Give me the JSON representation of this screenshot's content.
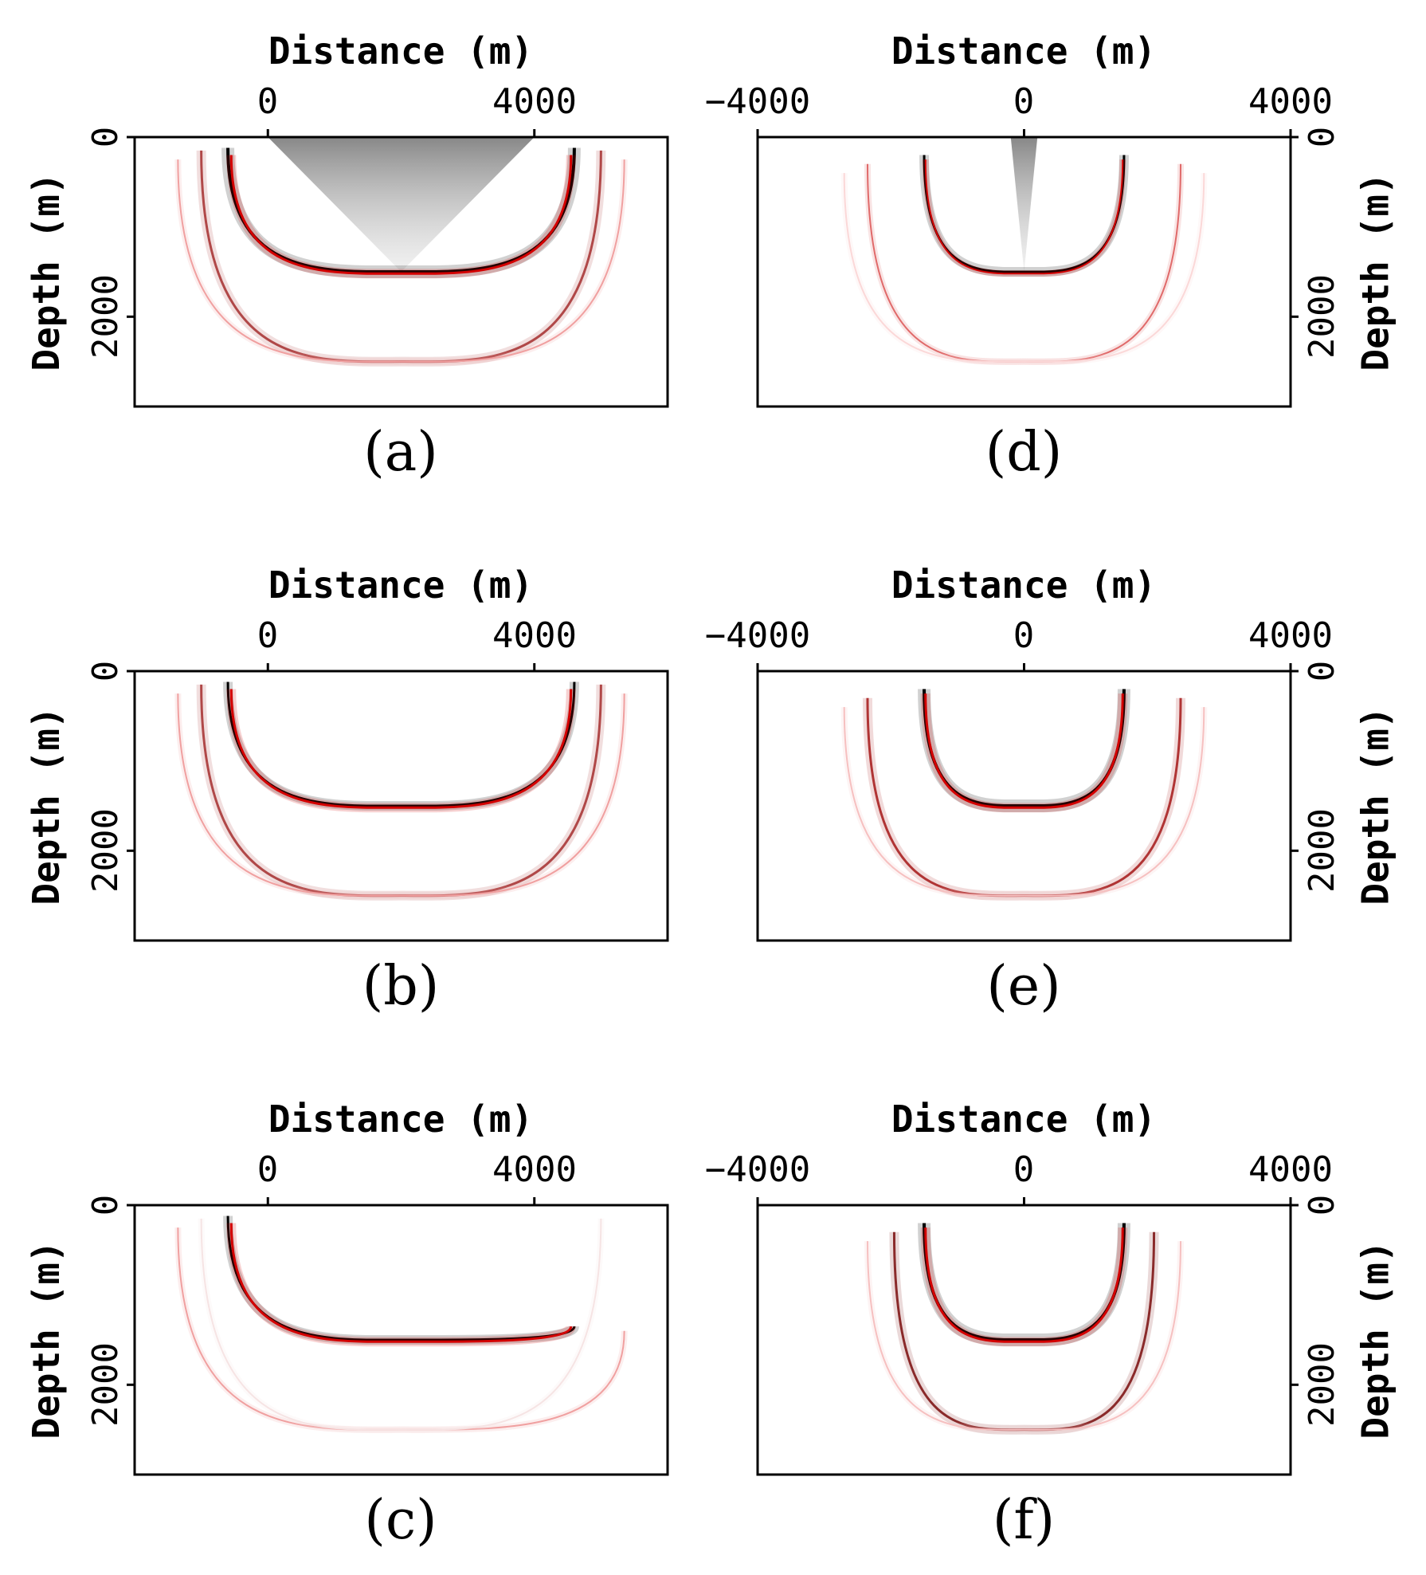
{
  "chart_data": [
    {
      "type": "heatmap",
      "panel": "(a)",
      "xlabel": "Distance (m)",
      "ylabel": "Depth (m)",
      "x_ticks": [
        0,
        4000
      ],
      "x_tick_labels": [
        "0",
        "4000"
      ],
      "y_ticks": [
        0,
        2000
      ],
      "y_tick_labels": [
        "0",
        "2000"
      ],
      "xlim": [
        -2000,
        6000
      ],
      "ylim": [
        0,
        3000
      ],
      "ylabel_side": "left",
      "colors": {
        "positive": "#d40000",
        "negative": "#000000",
        "background": "#ffffff"
      },
      "shades": [
        {
          "x_start": 0,
          "x_end": 4000,
          "apex_x": 2000,
          "apex_depth": 1500
        }
      ],
      "events": [
        {
          "center_x": 2000,
          "depth": 1500,
          "half_width": 2600,
          "top_depth": 120,
          "color": "#000000",
          "weight": 4
        },
        {
          "center_x": 2000,
          "depth": 1520,
          "half_width": 2550,
          "top_depth": 200,
          "color": "#d40000",
          "weight": 3
        },
        {
          "center_x": 2000,
          "depth": 2500,
          "half_width": 3000,
          "top_depth": 150,
          "color": "#b04848",
          "weight": 3
        },
        {
          "center_x": 2000,
          "depth": 2500,
          "half_width": 3350,
          "top_depth": 250,
          "color": "#f0a0a0",
          "weight": 2
        }
      ]
    },
    {
      "type": "heatmap",
      "panel": "(b)",
      "xlabel": "Distance (m)",
      "ylabel": "Depth (m)",
      "x_ticks": [
        0,
        4000
      ],
      "x_tick_labels": [
        "0",
        "4000"
      ],
      "y_ticks": [
        0,
        2000
      ],
      "y_tick_labels": [
        "0",
        "2000"
      ],
      "xlim": [
        -2000,
        6000
      ],
      "ylim": [
        0,
        3000
      ],
      "ylabel_side": "left",
      "colors": {
        "positive": "#d40000",
        "negative": "#000000",
        "background": "#ffffff"
      },
      "shades": [],
      "events": [
        {
          "center_x": 2000,
          "depth": 1500,
          "half_width": 2600,
          "top_depth": 120,
          "color": "#000000",
          "weight": 3
        },
        {
          "center_x": 2000,
          "depth": 1520,
          "half_width": 2550,
          "top_depth": 200,
          "color": "#d40000",
          "weight": 3
        },
        {
          "center_x": 2000,
          "depth": 2500,
          "half_width": 3000,
          "top_depth": 150,
          "color": "#b04848",
          "weight": 3
        },
        {
          "center_x": 2000,
          "depth": 2500,
          "half_width": 3350,
          "top_depth": 250,
          "color": "#f0a0a0",
          "weight": 2
        }
      ]
    },
    {
      "type": "heatmap",
      "panel": "(c)",
      "xlabel": "Distance (m)",
      "ylabel": "Depth (m)",
      "x_ticks": [
        0,
        4000
      ],
      "x_tick_labels": [
        "0",
        "4000"
      ],
      "y_ticks": [
        0,
        2000
      ],
      "y_tick_labels": [
        "0",
        "2000"
      ],
      "xlim": [
        -2000,
        6000
      ],
      "ylim": [
        0,
        3000
      ],
      "ylabel_side": "left",
      "colors": {
        "positive": "#d40000",
        "negative": "#000000",
        "background": "#ffffff"
      },
      "shades": [],
      "events": [
        {
          "center_x": 2000,
          "depth": 1500,
          "half_width": 2600,
          "top_depth": 120,
          "top_to_depth": 1350,
          "color": "#000000",
          "weight": 3
        },
        {
          "center_x": 2000,
          "depth": 1520,
          "half_width": 2550,
          "top_depth": 200,
          "top_to_depth": 1350,
          "color": "#d40000",
          "weight": 3
        },
        {
          "center_x": 2000,
          "depth": 2500,
          "half_width": 3350,
          "top_depth": 250,
          "top_to_depth": 1400,
          "color": "#f0a0a0",
          "weight": 2
        },
        {
          "center_x": 2000,
          "depth": 2500,
          "half_width": 3000,
          "top_depth": 150,
          "color": "#f6e4e4",
          "weight": 2
        }
      ]
    },
    {
      "type": "heatmap",
      "panel": "(d)",
      "xlabel": "Distance (m)",
      "ylabel": "Depth (m)",
      "x_ticks": [
        -4000,
        0,
        4000
      ],
      "x_tick_labels": [
        "−4000",
        "0",
        "4000"
      ],
      "y_ticks": [
        0,
        2000
      ],
      "y_tick_labels": [
        "0",
        "2000"
      ],
      "xlim": [
        -4000,
        4000
      ],
      "ylim": [
        0,
        3000
      ],
      "ylabel_side": "right",
      "colors": {
        "positive": "#d40000",
        "negative": "#000000",
        "background": "#ffffff"
      },
      "shades": [
        {
          "x_start": -200,
          "x_end": 200,
          "apex_x": 0,
          "apex_depth": 1500
        }
      ],
      "events": [
        {
          "center_x": 0,
          "depth": 1500,
          "half_width": 1500,
          "top_depth": 200,
          "color": "#000000",
          "weight": 3
        },
        {
          "center_x": 0,
          "depth": 1520,
          "half_width": 1480,
          "top_depth": 250,
          "color": "#d40000",
          "weight": 2
        },
        {
          "center_x": 0,
          "depth": 2500,
          "half_width": 2350,
          "top_depth": 300,
          "color": "#e06a6a",
          "weight": 2
        },
        {
          "center_x": 0,
          "depth": 2500,
          "half_width": 2700,
          "top_depth": 400,
          "color": "#fbd8d8",
          "weight": 2
        }
      ]
    },
    {
      "type": "heatmap",
      "panel": "(e)",
      "xlabel": "Distance (m)",
      "ylabel": "Depth (m)",
      "x_ticks": [
        -4000,
        0,
        4000
      ],
      "x_tick_labels": [
        "−4000",
        "0",
        "4000"
      ],
      "y_ticks": [
        0,
        2000
      ],
      "y_tick_labels": [
        "0",
        "2000"
      ],
      "xlim": [
        -4000,
        4000
      ],
      "ylim": [
        0,
        3000
      ],
      "ylabel_side": "right",
      "colors": {
        "positive": "#d40000",
        "negative": "#000000",
        "background": "#ffffff"
      },
      "shades": [],
      "events": [
        {
          "center_x": 0,
          "depth": 1500,
          "half_width": 1500,
          "top_depth": 200,
          "color": "#000000",
          "weight": 4
        },
        {
          "center_x": 0,
          "depth": 1520,
          "half_width": 1480,
          "top_depth": 250,
          "color": "#d40000",
          "weight": 3
        },
        {
          "center_x": 0,
          "depth": 2500,
          "half_width": 2350,
          "top_depth": 300,
          "color": "#b03434",
          "weight": 3
        },
        {
          "center_x": 0,
          "depth": 2500,
          "half_width": 2700,
          "top_depth": 400,
          "color": "#f6c0c0",
          "weight": 2
        }
      ]
    },
    {
      "type": "heatmap",
      "panel": "(f)",
      "xlabel": "Distance (m)",
      "ylabel": "Depth (m)",
      "x_ticks": [
        -4000,
        0,
        4000
      ],
      "x_tick_labels": [
        "−4000",
        "0",
        "4000"
      ],
      "y_ticks": [
        0,
        2000
      ],
      "y_tick_labels": [
        "0",
        "2000"
      ],
      "xlim": [
        -4000,
        4000
      ],
      "ylim": [
        0,
        3000
      ],
      "ylabel_side": "right",
      "colors": {
        "positive": "#d40000",
        "negative": "#000000",
        "background": "#ffffff"
      },
      "shades": [],
      "events": [
        {
          "center_x": 0,
          "depth": 1500,
          "half_width": 1500,
          "top_depth": 200,
          "color": "#000000",
          "weight": 4
        },
        {
          "center_x": 0,
          "depth": 1520,
          "half_width": 1480,
          "top_depth": 250,
          "color": "#d40000",
          "weight": 3
        },
        {
          "center_x": 0,
          "depth": 2500,
          "half_width": 1950,
          "top_depth": 300,
          "color": "#8a2a2a",
          "weight": 3
        },
        {
          "center_x": 0,
          "depth": 2500,
          "half_width": 2350,
          "top_depth": 400,
          "color": "#f6c0c0",
          "weight": 2
        }
      ]
    }
  ]
}
